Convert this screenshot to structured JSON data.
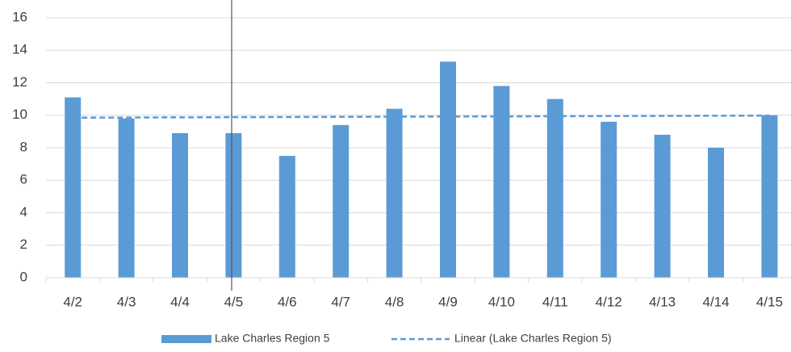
{
  "chart_data": {
    "type": "bar",
    "categories": [
      "4/2",
      "4/3",
      "4/4",
      "4/5",
      "4/6",
      "4/7",
      "4/8",
      "4/9",
      "4/10",
      "4/11",
      "4/12",
      "4/13",
      "4/14",
      "4/15"
    ],
    "series": [
      {
        "name": "Lake Charles Region 5",
        "color": "#5b9bd5",
        "type": "bar",
        "values": [
          11.1,
          9.8,
          8.9,
          8.9,
          7.5,
          9.4,
          10.4,
          13.3,
          11.8,
          11.0,
          9.6,
          8.8,
          8.0,
          10.0
        ]
      },
      {
        "name": "Linear (Lake Charles Region 5)",
        "color": "#5b9bd5",
        "type": "line",
        "dashed": true,
        "values": [
          9.85,
          9.86,
          9.87,
          9.88,
          9.89,
          9.9,
          9.91,
          9.92,
          9.93,
          9.94,
          9.95,
          9.96,
          9.97,
          9.98
        ]
      }
    ],
    "ylim": [
      0,
      16
    ],
    "yticks": [
      0,
      2,
      4,
      6,
      8,
      10,
      12,
      14,
      16
    ],
    "grid": true,
    "legend": "bottom"
  }
}
